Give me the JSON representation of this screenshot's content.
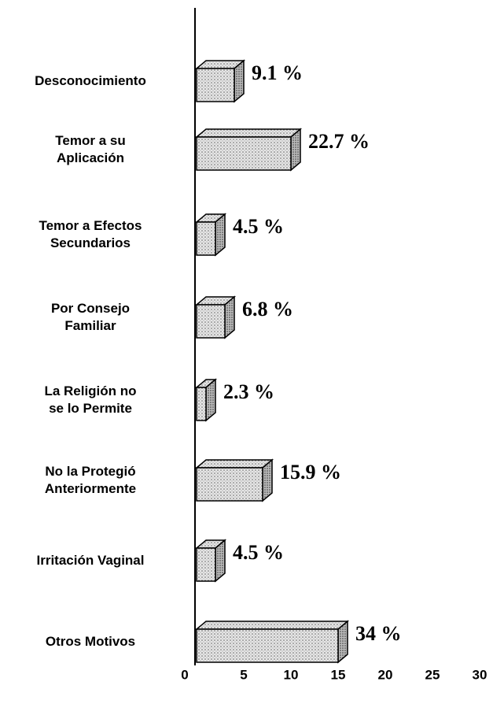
{
  "chart_data": {
    "type": "bar",
    "orientation": "horizontal",
    "categories": [
      "Desconocimiento",
      "Temor a su\nAplicación",
      "Temor a Efectos\nSecundarios",
      "Por Consejo\nFamiliar",
      "La Religión no\nse lo Permite",
      "No la Protegió\nAnteriormente",
      "Irritación Vaginal",
      "Otros Motivos"
    ],
    "values": [
      4,
      10,
      2,
      3,
      1,
      7,
      2,
      15
    ],
    "percentages": [
      9.1,
      22.7,
      4.5,
      6.8,
      2.3,
      15.9,
      4.5,
      34
    ],
    "percentage_labels": [
      "9.1 %",
      "22.7  %",
      "4.5 %",
      "6.8 %",
      "2.3  %",
      "15.9 %",
      "4.5   %",
      "34    %"
    ],
    "color": "#d8d8d8",
    "xlim": [
      0,
      30
    ],
    "xticks": [
      0,
      5,
      10,
      15,
      20,
      25,
      30
    ],
    "grid": false
  }
}
